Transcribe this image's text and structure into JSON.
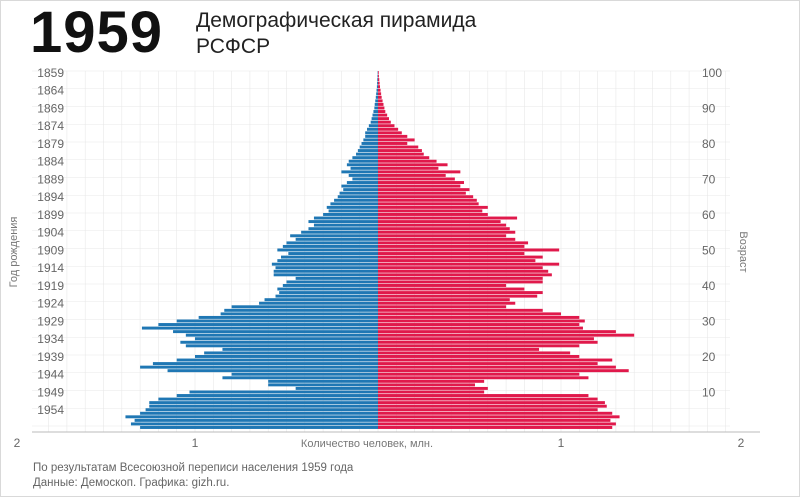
{
  "header": {
    "year": "1959",
    "title_line1": "Демографическая пирамида",
    "title_line2": "РСФСР"
  },
  "footer": {
    "line1": "По результатам Всесоюзной переписи населения 1959 года",
    "line2": "Данные: Демоскоп. Графика: gizh.ru."
  },
  "colors": {
    "male": "#1f77b4",
    "female": "#e0194b",
    "grid": "#e8e8e8"
  },
  "chart_data": {
    "type": "bar",
    "orientation": "horizontal-population-pyramid",
    "xlabel": "Количество человек, млн.",
    "ylabel_left": "Год рождения",
    "ylabel_right": "Возраст",
    "xlim": [
      -2,
      2
    ],
    "x_ticks": [
      "2",
      "1",
      "1",
      "2"
    ],
    "left_ticks": [
      "1859",
      "1864",
      "1869",
      "1874",
      "1879",
      "1884",
      "1889",
      "1894",
      "1899",
      "1904",
      "1909",
      "1914",
      "1919",
      "1924",
      "1929",
      "1934",
      "1939",
      "1944",
      "1949",
      "1954"
    ],
    "right_ticks": [
      "100",
      "90",
      "80",
      "70",
      "60",
      "50",
      "40",
      "30",
      "20",
      "10"
    ],
    "ages_top_to_bottom": [
      100,
      99,
      98,
      97,
      96,
      95,
      94,
      93,
      92,
      91,
      90,
      89,
      88,
      87,
      86,
      85,
      84,
      83,
      82,
      81,
      80,
      79,
      78,
      77,
      76,
      75,
      74,
      73,
      72,
      71,
      70,
      69,
      68,
      67,
      66,
      65,
      64,
      63,
      62,
      61,
      60,
      59,
      58,
      57,
      56,
      55,
      54,
      53,
      52,
      51,
      50,
      49,
      48,
      47,
      46,
      45,
      44,
      43,
      42,
      41,
      40,
      39,
      38,
      37,
      36,
      35,
      34,
      33,
      32,
      31,
      30,
      29,
      28,
      27,
      26,
      25,
      24,
      23,
      22,
      21,
      20,
      19,
      18,
      17,
      16,
      15,
      14,
      13,
      12,
      11,
      10,
      9,
      8,
      7,
      6,
      5,
      4,
      3,
      2,
      1,
      0
    ],
    "series": [
      {
        "name": "",
        "side": "left",
        "values": [
          0.002,
          0.003,
          0.004,
          0.005,
          0.006,
          0.008,
          0.01,
          0.012,
          0.015,
          0.018,
          0.02,
          0.025,
          0.03,
          0.035,
          0.04,
          0.05,
          0.06,
          0.07,
          0.07,
          0.08,
          0.09,
          0.1,
          0.11,
          0.12,
          0.14,
          0.16,
          0.17,
          0.15,
          0.2,
          0.16,
          0.14,
          0.17,
          0.2,
          0.19,
          0.21,
          0.22,
          0.24,
          0.26,
          0.28,
          0.27,
          0.3,
          0.35,
          0.38,
          0.35,
          0.38,
          0.42,
          0.48,
          0.45,
          0.5,
          0.52,
          0.55,
          0.49,
          0.53,
          0.55,
          0.58,
          0.56,
          0.57,
          0.57,
          0.45,
          0.5,
          0.52,
          0.55,
          0.54,
          0.56,
          0.62,
          0.65,
          0.8,
          0.84,
          0.86,
          0.98,
          1.1,
          1.2,
          1.29,
          1.12,
          1.05,
          1.0,
          1.08,
          1.05,
          0.85,
          0.95,
          1.0,
          1.1,
          1.23,
          1.3,
          1.15,
          0.8,
          0.85,
          0.6,
          0.6,
          0.45,
          1.03,
          1.1,
          1.2,
          1.25,
          1.25,
          1.27,
          1.3,
          1.38,
          1.33,
          1.35,
          1.3
        ]
      },
      {
        "name": "",
        "side": "right",
        "values": [
          0.004,
          0.005,
          0.007,
          0.009,
          0.011,
          0.014,
          0.017,
          0.02,
          0.025,
          0.03,
          0.035,
          0.04,
          0.05,
          0.06,
          0.07,
          0.09,
          0.11,
          0.13,
          0.16,
          0.2,
          0.16,
          0.22,
          0.24,
          0.25,
          0.28,
          0.32,
          0.38,
          0.33,
          0.45,
          0.37,
          0.42,
          0.47,
          0.45,
          0.5,
          0.48,
          0.52,
          0.54,
          0.55,
          0.6,
          0.57,
          0.6,
          0.76,
          0.67,
          0.7,
          0.72,
          0.75,
          0.7,
          0.75,
          0.82,
          0.8,
          0.99,
          0.8,
          0.9,
          0.86,
          0.99,
          0.9,
          0.93,
          0.95,
          0.9,
          0.9,
          0.7,
          0.8,
          0.9,
          0.87,
          0.72,
          0.75,
          0.7,
          0.9,
          1.0,
          1.1,
          1.13,
          1.1,
          1.12,
          1.3,
          1.4,
          1.18,
          1.2,
          1.1,
          0.88,
          1.05,
          1.1,
          1.28,
          1.2,
          1.3,
          1.37,
          1.1,
          1.15,
          0.58,
          0.53,
          0.6,
          0.58,
          1.15,
          1.2,
          1.24,
          1.25,
          1.2,
          1.28,
          1.32,
          1.27,
          1.3,
          1.28
        ]
      }
    ]
  }
}
